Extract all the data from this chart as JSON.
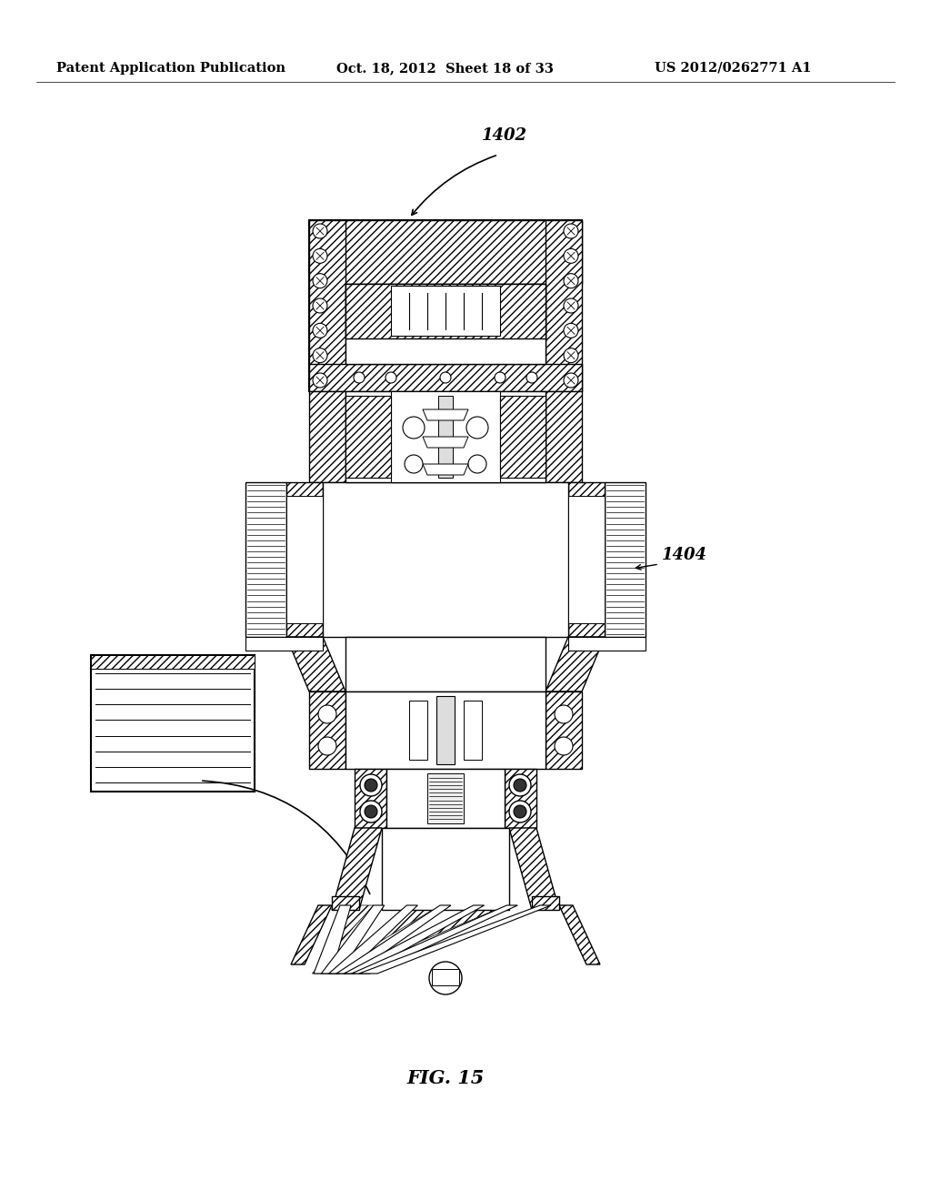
{
  "background_color": "#ffffff",
  "header_text_left": "Patent Application Publication",
  "header_text_center": "Oct. 18, 2012  Sheet 18 of 33",
  "header_text_right": "US 2012/0262771 A1",
  "figure_label": "FIG. 15",
  "label_1402": "1402",
  "label_1404": "1404",
  "header_fontsize": 10.5,
  "label_fontsize": 13,
  "fig15_fontsize": 15
}
